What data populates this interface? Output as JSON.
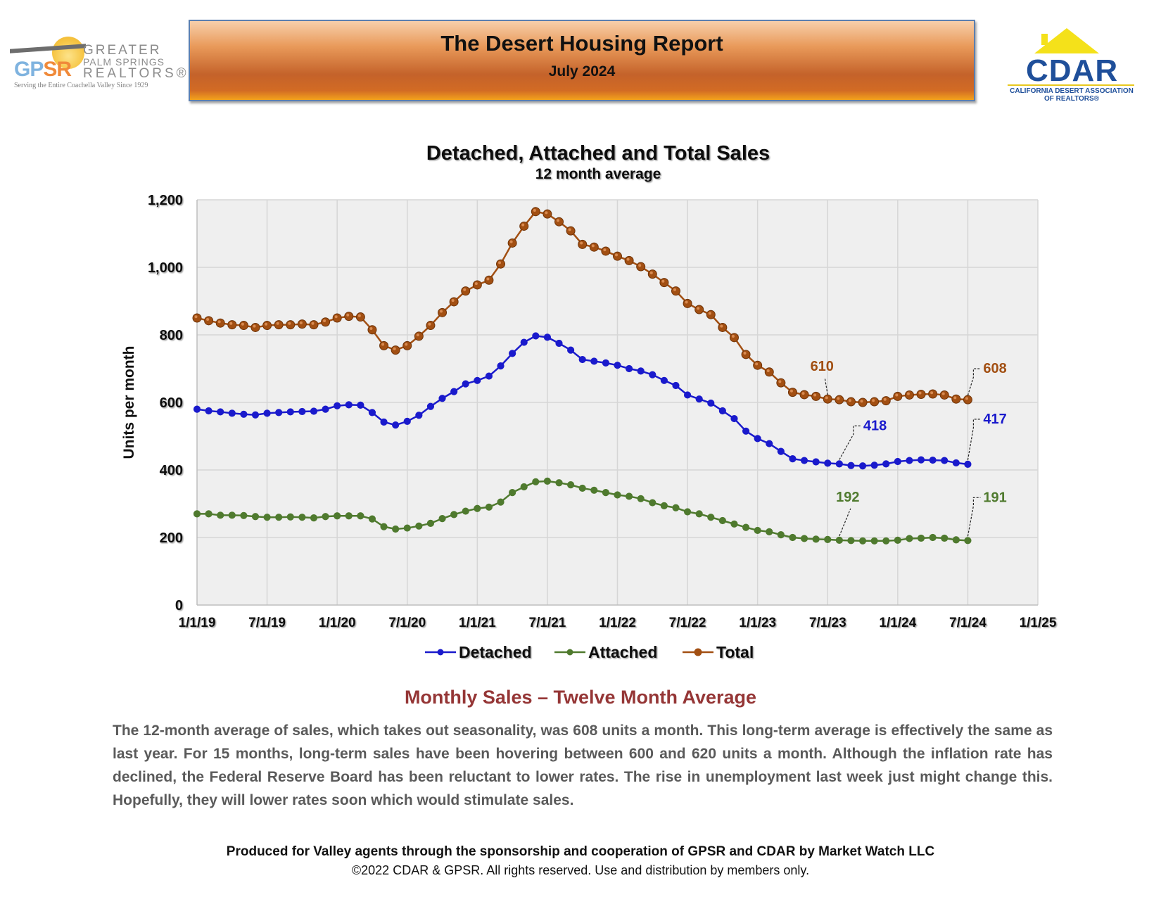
{
  "logos": {
    "gpsr": {
      "abbr_a": "GP",
      "abbr_b": "SR",
      "line1": "GREATER",
      "line2": "PALM SPRINGS",
      "line3": "REALTORS®",
      "tagline": "Serving the Entire Coachella Valley Since 1929"
    },
    "cdar": {
      "name": "CDAR",
      "sub1": "CALIFORNIA DESERT ASSOCIATION",
      "sub2": "OF REALTORS®"
    }
  },
  "header": {
    "title": "The Desert Housing Report",
    "subtitle": "July 2024"
  },
  "chart_data": {
    "type": "line",
    "title": "Detached, Attached and Total Sales",
    "subtitle": "12 month average",
    "ylabel": "Units per month",
    "xlabel": "",
    "ylim": [
      0,
      1200
    ],
    "yticks": [
      "0",
      "200",
      "400",
      "600",
      "800",
      "1,000",
      "1,200"
    ],
    "xticks": [
      "1/1/19",
      "7/1/19",
      "1/1/20",
      "7/1/20",
      "1/1/21",
      "7/1/21",
      "1/1/22",
      "7/1/22",
      "1/1/23",
      "7/1/23",
      "1/1/24",
      "7/1/24",
      "1/1/25"
    ],
    "grid": true,
    "legend_position": "bottom",
    "x_start": "2019-01",
    "series": [
      {
        "name": "Detached",
        "color": "#1a1acc",
        "values": [
          580,
          575,
          572,
          568,
          565,
          563,
          568,
          570,
          572,
          573,
          574,
          580,
          590,
          593,
          592,
          570,
          542,
          533,
          544,
          562,
          588,
          612,
          632,
          655,
          665,
          678,
          708,
          745,
          778,
          797,
          793,
          775,
          755,
          727,
          722,
          717,
          710,
          700,
          693,
          682,
          665,
          650,
          622,
          610,
          598,
          575,
          552,
          515,
          493,
          478,
          455,
          433,
          428,
          424,
          420,
          418,
          413,
          412,
          414,
          418,
          425,
          428,
          430,
          429,
          428,
          421,
          417
        ]
      },
      {
        "name": "Attached",
        "color": "#4f7a2e",
        "values": [
          270,
          270,
          266,
          266,
          265,
          262,
          260,
          260,
          261,
          260,
          258,
          262,
          264,
          264,
          264,
          255,
          232,
          225,
          228,
          234,
          242,
          256,
          268,
          278,
          286,
          290,
          305,
          333,
          350,
          365,
          367,
          362,
          356,
          346,
          340,
          333,
          326,
          322,
          315,
          303,
          294,
          288,
          276,
          270,
          260,
          250,
          240,
          230,
          221,
          217,
          208,
          200,
          197,
          195,
          194,
          192,
          191,
          190,
          190,
          190,
          192,
          197,
          198,
          200,
          198,
          193,
          191
        ]
      },
      {
        "name": "Total",
        "color": "#a24f12",
        "values": [
          850,
          842,
          835,
          830,
          828,
          822,
          828,
          830,
          830,
          832,
          830,
          838,
          850,
          855,
          853,
          815,
          768,
          755,
          768,
          796,
          828,
          866,
          898,
          930,
          948,
          962,
          1010,
          1072,
          1122,
          1165,
          1158,
          1135,
          1108,
          1068,
          1060,
          1048,
          1033,
          1020,
          1002,
          980,
          955,
          930,
          893,
          875,
          860,
          822,
          792,
          742,
          710,
          690,
          658,
          630,
          623,
          618,
          610,
          608,
          602,
          600,
          602,
          605,
          618,
          622,
          624,
          625,
          622,
          610,
          608
        ]
      }
    ],
    "annotations": [
      {
        "series": "Total",
        "label": "610",
        "index": 54
      },
      {
        "series": "Total",
        "label": "608",
        "index": 66
      },
      {
        "series": "Detached",
        "label": "418",
        "index": 55
      },
      {
        "series": "Detached",
        "label": "417",
        "index": 66
      },
      {
        "series": "Attached",
        "label": "192",
        "index": 55
      },
      {
        "series": "Attached",
        "label": "191",
        "index": 66
      }
    ]
  },
  "section": {
    "title": "Monthly Sales – Twelve Month Average",
    "paragraph": "The 12-month average of sales, which takes out seasonality, was 608 units a month. This long-term average is effectively the same as last year. For 15 months, long-term sales have been hovering between 600 and 620 units a month. Although the inflation rate has declined, the Federal Reserve Board has been reluctant to lower rates. The rise in unemployment last week just might change this. Hopefully, they will lower rates soon which would stimulate sales."
  },
  "footer": {
    "line1": "Produced for Valley agents through the sponsorship and cooperation of GPSR and CDAR by Market Watch LLC",
    "line2": "©2022 CDAR & GPSR.  All rights reserved.  Use and distribution by members only."
  }
}
